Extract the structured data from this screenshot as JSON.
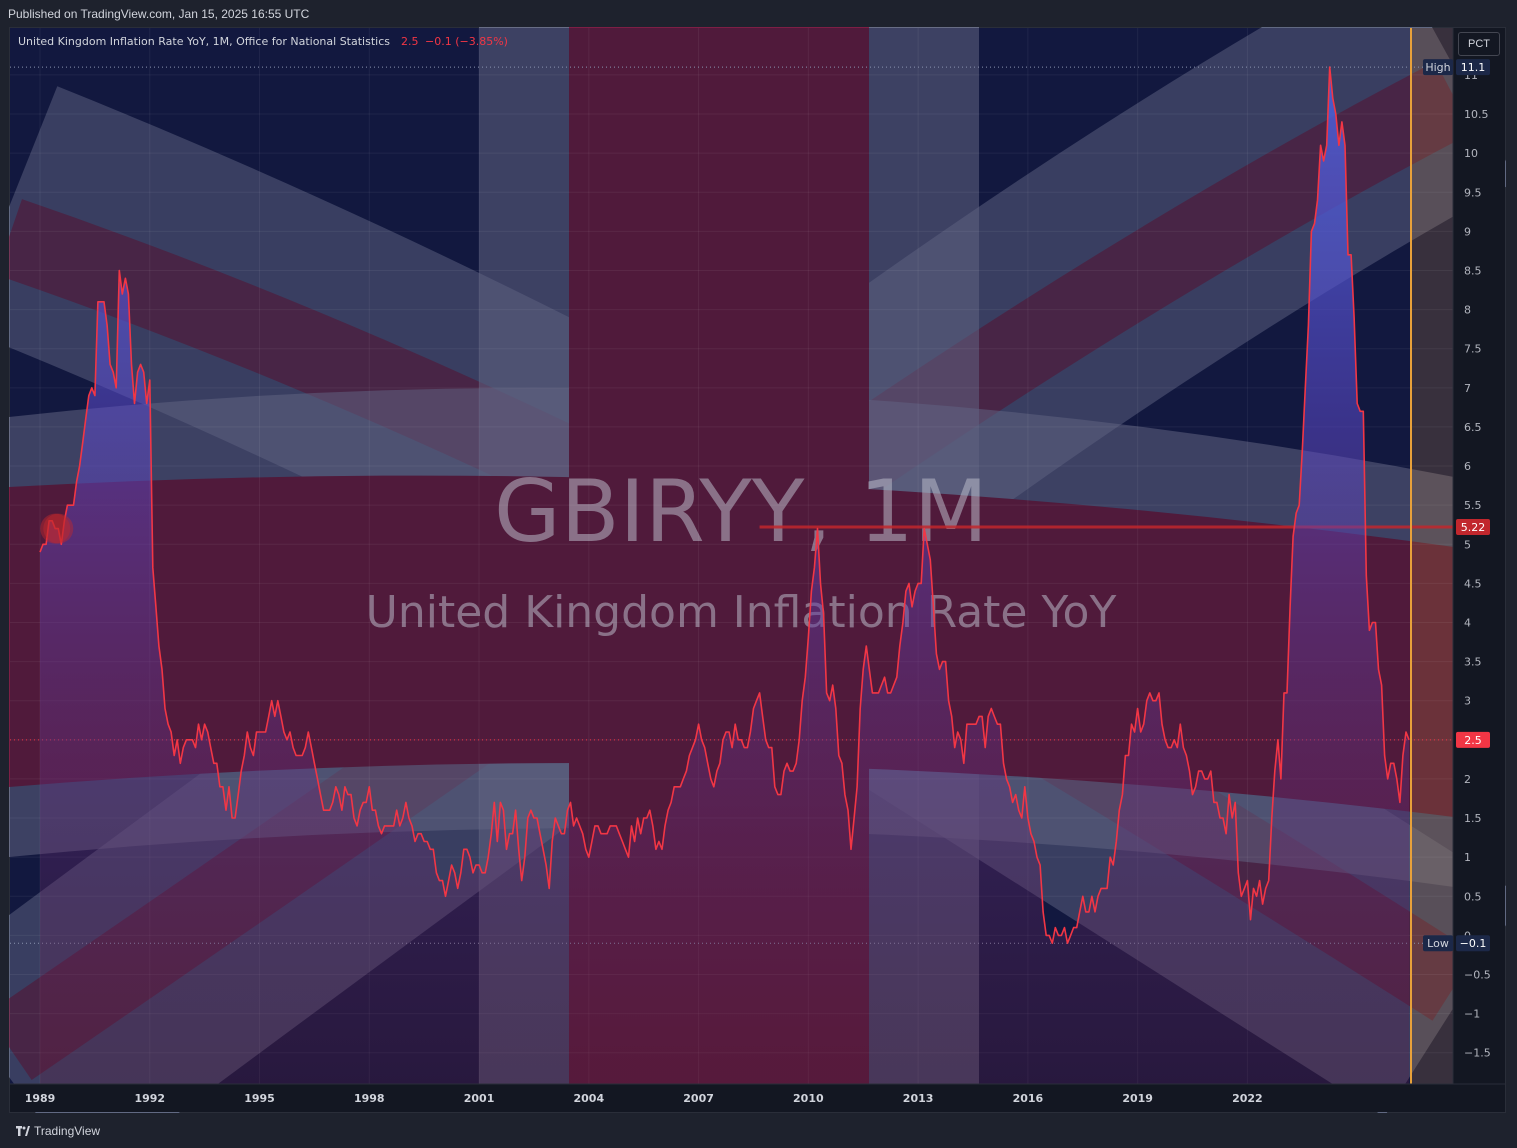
{
  "header": {
    "published": "Published on TradingView.com, Jan 15, 2025 16:55 UTC"
  },
  "legend": {
    "title": "United Kingdom Inflation Rate YoY, 1M, Office for National Statistics",
    "last": "2.5",
    "change": "−0.1 (−3.85%)"
  },
  "watermark": {
    "symbol": "GBIRYY, 1M",
    "description": "United Kingdom Inflation Rate YoY"
  },
  "scale_button": "PCT",
  "footer": {
    "brand": "TradingView"
  },
  "colors": {
    "line": "#f23645",
    "area_top": "#3d5bd9",
    "area_bottom": "#5a1a3a",
    "hline": "#c1272d",
    "vline": "#e8a13a",
    "high_low_badge": "#1c2848",
    "last_badge": "#f23645"
  },
  "chart_data": {
    "type": "area",
    "x_start": "1989-01",
    "x_step": "1M",
    "x_ticks": [
      "1989",
      "1992",
      "1995",
      "1998",
      "2001",
      "2004",
      "2007",
      "2010",
      "2013",
      "2016",
      "2019",
      "2022"
    ],
    "y_ticks": [
      "11",
      "10.5",
      "10",
      "9.5",
      "9",
      "8.5",
      "8",
      "7.5",
      "7",
      "6.5",
      "6",
      "5.5",
      "5",
      "4.5",
      "4",
      "3.5",
      "3",
      "2.5",
      "2",
      "1.5",
      "1",
      "0.5",
      "0",
      "−0.5",
      "−1",
      "−1.5"
    ],
    "ylim": [
      -1.9,
      11.6
    ],
    "high": {
      "label": "High",
      "value": "11.1"
    },
    "low": {
      "label": "Low",
      "value": "−0.1"
    },
    "last": {
      "value": "2.5"
    },
    "horizontal_line": {
      "value": "5.22",
      "from": "2008-09"
    },
    "values": [
      4.9,
      5,
      5,
      5.3,
      5.3,
      5.2,
      5.2,
      5,
      5.3,
      5.5,
      5.5,
      5.5,
      5.8,
      6,
      6.3,
      6.6,
      6.9,
      7,
      6.9,
      8.1,
      8.1,
      8.1,
      7.8,
      7.3,
      7.2,
      7,
      8.5,
      8.2,
      8.4,
      8.2,
      7.3,
      6.8,
      7.2,
      7.3,
      7.2,
      6.8,
      7.1,
      4.7,
      4.2,
      3.7,
      3.4,
      2.9,
      2.7,
      2.6,
      2.3,
      2.5,
      2.2,
      2.4,
      2.5,
      2.5,
      2.5,
      2.4,
      2.7,
      2.5,
      2.7,
      2.6,
      2.4,
      2.2,
      2.2,
      1.9,
      1.9,
      1.6,
      1.9,
      1.5,
      1.5,
      1.8,
      2.1,
      2.3,
      2.6,
      2.4,
      2.3,
      2.6,
      2.6,
      2.6,
      2.6,
      2.8,
      3,
      2.8,
      3,
      2.8,
      2.6,
      2.5,
      2.6,
      2.4,
      2.3,
      2.3,
      2.3,
      2.4,
      2.6,
      2.4,
      2.2,
      2,
      1.8,
      1.6,
      1.6,
      1.6,
      1.7,
      1.9,
      1.8,
      1.6,
      1.9,
      1.8,
      1.8,
      1.5,
      1.4,
      1.6,
      1.7,
      1.7,
      1.9,
      1.6,
      1.6,
      1.4,
      1.3,
      1.4,
      1.4,
      1.4,
      1.4,
      1.6,
      1.4,
      1.5,
      1.7,
      1.5,
      1.4,
      1.2,
      1.3,
      1.3,
      1.2,
      1.2,
      1.1,
      1.1,
      0.8,
      0.7,
      0.7,
      0.5,
      0.7,
      0.9,
      0.8,
      0.6,
      0.8,
      1.1,
      1.1,
      1,
      0.8,
      0.9,
      0.9,
      0.8,
      0.8,
      1,
      1.3,
      1.7,
      1.2,
      1.7,
      1.6,
      1.1,
      1.3,
      1.3,
      1.6,
      1.1,
      0.7,
      1,
      1.5,
      1.6,
      1.5,
      1.5,
      1.3,
      1.1,
      0.9,
      0.6,
      1.2,
      1.5,
      1.4,
      1.3,
      1.3,
      1.6,
      1.7,
      1.4,
      1.5,
      1.4,
      1.3,
      1.1,
      1,
      1.2,
      1.4,
      1.4,
      1.3,
      1.3,
      1.3,
      1.4,
      1.4,
      1.4,
      1.3,
      1.2,
      1.1,
      1,
      1.4,
      1.2,
      1.5,
      1.3,
      1.5,
      1.5,
      1.6,
      1.4,
      1.1,
      1.2,
      1.1,
      1.4,
      1.6,
      1.7,
      1.9,
      1.9,
      1.9,
      2,
      2.1,
      2.3,
      2.4,
      2.5,
      2.7,
      2.5,
      2.4,
      2.2,
      2,
      1.9,
      2.1,
      2.2,
      2.5,
      2.6,
      2.6,
      2.4,
      2.7,
      2.5,
      2.5,
      2.4,
      2.4,
      2.6,
      2.9,
      3,
      3.1,
      2.8,
      2.5,
      2.4,
      2.4,
      1.9,
      1.8,
      1.8,
      2.1,
      2.2,
      2.1,
      2.1,
      2.2,
      2.5,
      3,
      3.3,
      3.8,
      4.4,
      4.7,
      5.2,
      4.5,
      4.1,
      3.1,
      3,
      3.2,
      2.9,
      2.3,
      2.2,
      1.8,
      1.6,
      1.1,
      1.5,
      1.9,
      2.9,
      3.4,
      3.7,
      3.4,
      3.1,
      3.1,
      3.1,
      3.2,
      3.3,
      3.1,
      3.1,
      3.2,
      3.3,
      3.7,
      4,
      4.4,
      4.5,
      4.2,
      4.4,
      4.5,
      4.5,
      5.2,
      5,
      4.8,
      4.2,
      3.6,
      3.4,
      3.5,
      3.5,
      3,
      2.8,
      2.4,
      2.6,
      2.5,
      2.2,
      2.7,
      2.7,
      2.7,
      2.7,
      2.8,
      2.8,
      2.4,
      2.8,
      2.9,
      2.8,
      2.7,
      2.7,
      2.2,
      2,
      1.9,
      1.7,
      1.8,
      1.6,
      1.5,
      1.9,
      1.5,
      1.3,
      1.2,
      1,
      0.9,
      0.3,
      0,
      0,
      -0.1,
      0.1,
      0,
      0,
      0.1,
      -0.1,
      0,
      0.1,
      0.1,
      0.3,
      0.5,
      0.3,
      0.3,
      0.5,
      0.3,
      0.5,
      0.6,
      0.6,
      0.6,
      1,
      0.9,
      1.2,
      1.6,
      1.8,
      2.3,
      2.3,
      2.7,
      2.6,
      2.9,
      2.6,
      2.7,
      3,
      3.1,
      3,
      3,
      3.1,
      2.7,
      2.5,
      2.4,
      2.4,
      2.5,
      2.4,
      2.7,
      2.4,
      2.3,
      2.1,
      1.8,
      1.9,
      2.1,
      2.1,
      2,
      2,
      2.1,
      1.7,
      1.7,
      1.5,
      1.5,
      1.3,
      1.8,
      1.5,
      1.7,
      0.8,
      0.5,
      0.6,
      0.7,
      0.2,
      0.6,
      0.5,
      0.7,
      0.4,
      0.6,
      0.7,
      1.5,
      2.1,
      2.5,
      2,
      3.1,
      3.1,
      4.2,
      5.1,
      5.4,
      5.5,
      6.2,
      7,
      7.8,
      9,
      9.1,
      9.4,
      10.1,
      9.9,
      10.1,
      11.1,
      10.7,
      10.5,
      10.1,
      10.4,
      10.1,
      8.7,
      8.7,
      7.9,
      6.8,
      6.7,
      6.7,
      4.6,
      3.9,
      4,
      4,
      3.4,
      3.2,
      2.3,
      2,
      2.2,
      2.2,
      2,
      1.7,
      2.3,
      2.6,
      2.5
    ]
  }
}
